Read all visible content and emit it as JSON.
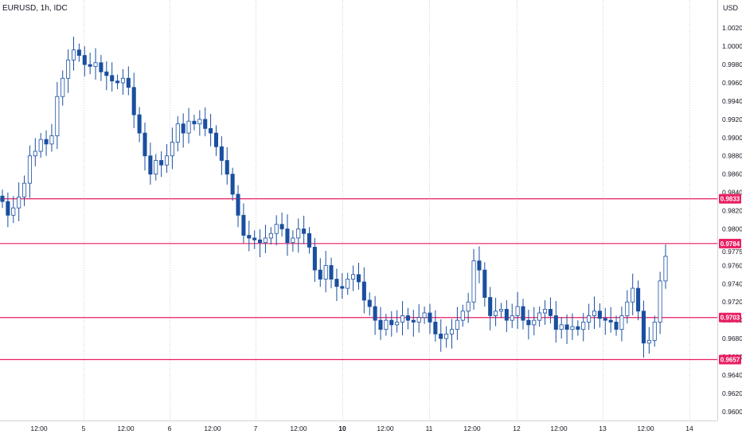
{
  "header": {
    "symbol_title": "EURUSD, 1h, IDC",
    "currency": "USD"
  },
  "colors": {
    "up": "#1a4fa0",
    "down": "#1a4fa0",
    "hline": "#e91e63",
    "grid": "#e6e6e6",
    "label_bg": "#e91e63"
  },
  "chart_data": {
    "type": "candlestick",
    "title": "EURUSD, 1h, IDC",
    "ylabel": "USD",
    "ylim": [
      0.9592,
      1.0035
    ],
    "y_ticks": [
      "1.0020",
      "1.0000",
      "0.9980",
      "0.9960",
      "0.9940",
      "0.9920",
      "0.9900",
      "0.9880",
      "0.9860",
      "0.9840",
      "0.9820",
      "0.9800",
      "0.9775",
      "0.9760",
      "0.9740",
      "0.9720",
      "0.9700",
      "0.9680",
      "0.9660",
      "0.9640",
      "0.9620",
      "0.9600"
    ],
    "x_ticks": [
      "12:00",
      "5",
      "12:00",
      "6",
      "12:00",
      "7",
      "12:00",
      "10",
      "12:00",
      "11",
      "12:00",
      "12",
      "12:00",
      "13",
      "12:00",
      "14"
    ],
    "x_tick_bold": [
      false,
      false,
      false,
      false,
      false,
      false,
      false,
      true,
      false,
      false,
      false,
      false,
      false,
      false,
      false,
      false
    ],
    "horizontal_lines": [
      {
        "value": 0.9833,
        "label": "0.9833"
      },
      {
        "value": 0.9784,
        "label": "0.9784"
      },
      {
        "value": 0.9703,
        "label": "0.9703"
      },
      {
        "value": 0.9657,
        "label": "0.9657"
      }
    ],
    "grid": true,
    "series": [
      {
        "name": "EURUSD",
        "close_path": [
          0.983,
          0.9815,
          0.9823,
          0.9835,
          0.985,
          0.988,
          0.9885,
          0.9898,
          0.9893,
          0.9902,
          0.9945,
          0.9965,
          0.9985,
          0.9996,
          0.999,
          0.998,
          0.9978,
          0.9982,
          0.9972,
          0.9968,
          0.9962,
          0.996,
          0.9965,
          0.9955,
          0.9925,
          0.9905,
          0.988,
          0.986,
          0.9875,
          0.987,
          0.988,
          0.9895,
          0.9915,
          0.9905,
          0.9918,
          0.9915,
          0.992,
          0.991,
          0.9905,
          0.989,
          0.9875,
          0.986,
          0.9838,
          0.9815,
          0.9793,
          0.979,
          0.9788,
          0.9785,
          0.979,
          0.9795,
          0.9805,
          0.98,
          0.9785,
          0.979,
          0.98,
          0.9795,
          0.978,
          0.9755,
          0.9745,
          0.976,
          0.9745,
          0.9737,
          0.9735,
          0.9745,
          0.975,
          0.9742,
          0.9722,
          0.9715,
          0.97,
          0.969,
          0.97,
          0.9695,
          0.9698,
          0.9705,
          0.97,
          0.9698,
          0.9703,
          0.9708,
          0.9698,
          0.9685,
          0.968,
          0.9685,
          0.969,
          0.97,
          0.971,
          0.972,
          0.9765,
          0.9755,
          0.9725,
          0.9705,
          0.971,
          0.9712,
          0.97,
          0.9705,
          0.9715,
          0.97,
          0.9695,
          0.97,
          0.9708,
          0.9712,
          0.9705,
          0.969,
          0.9695,
          0.969,
          0.9693,
          0.969,
          0.9698,
          0.9705,
          0.971,
          0.9702,
          0.97,
          0.9698,
          0.969,
          0.9705,
          0.972,
          0.9735,
          0.971,
          0.9675,
          0.9678,
          0.9698,
          0.9743,
          0.977
        ]
      }
    ]
  }
}
